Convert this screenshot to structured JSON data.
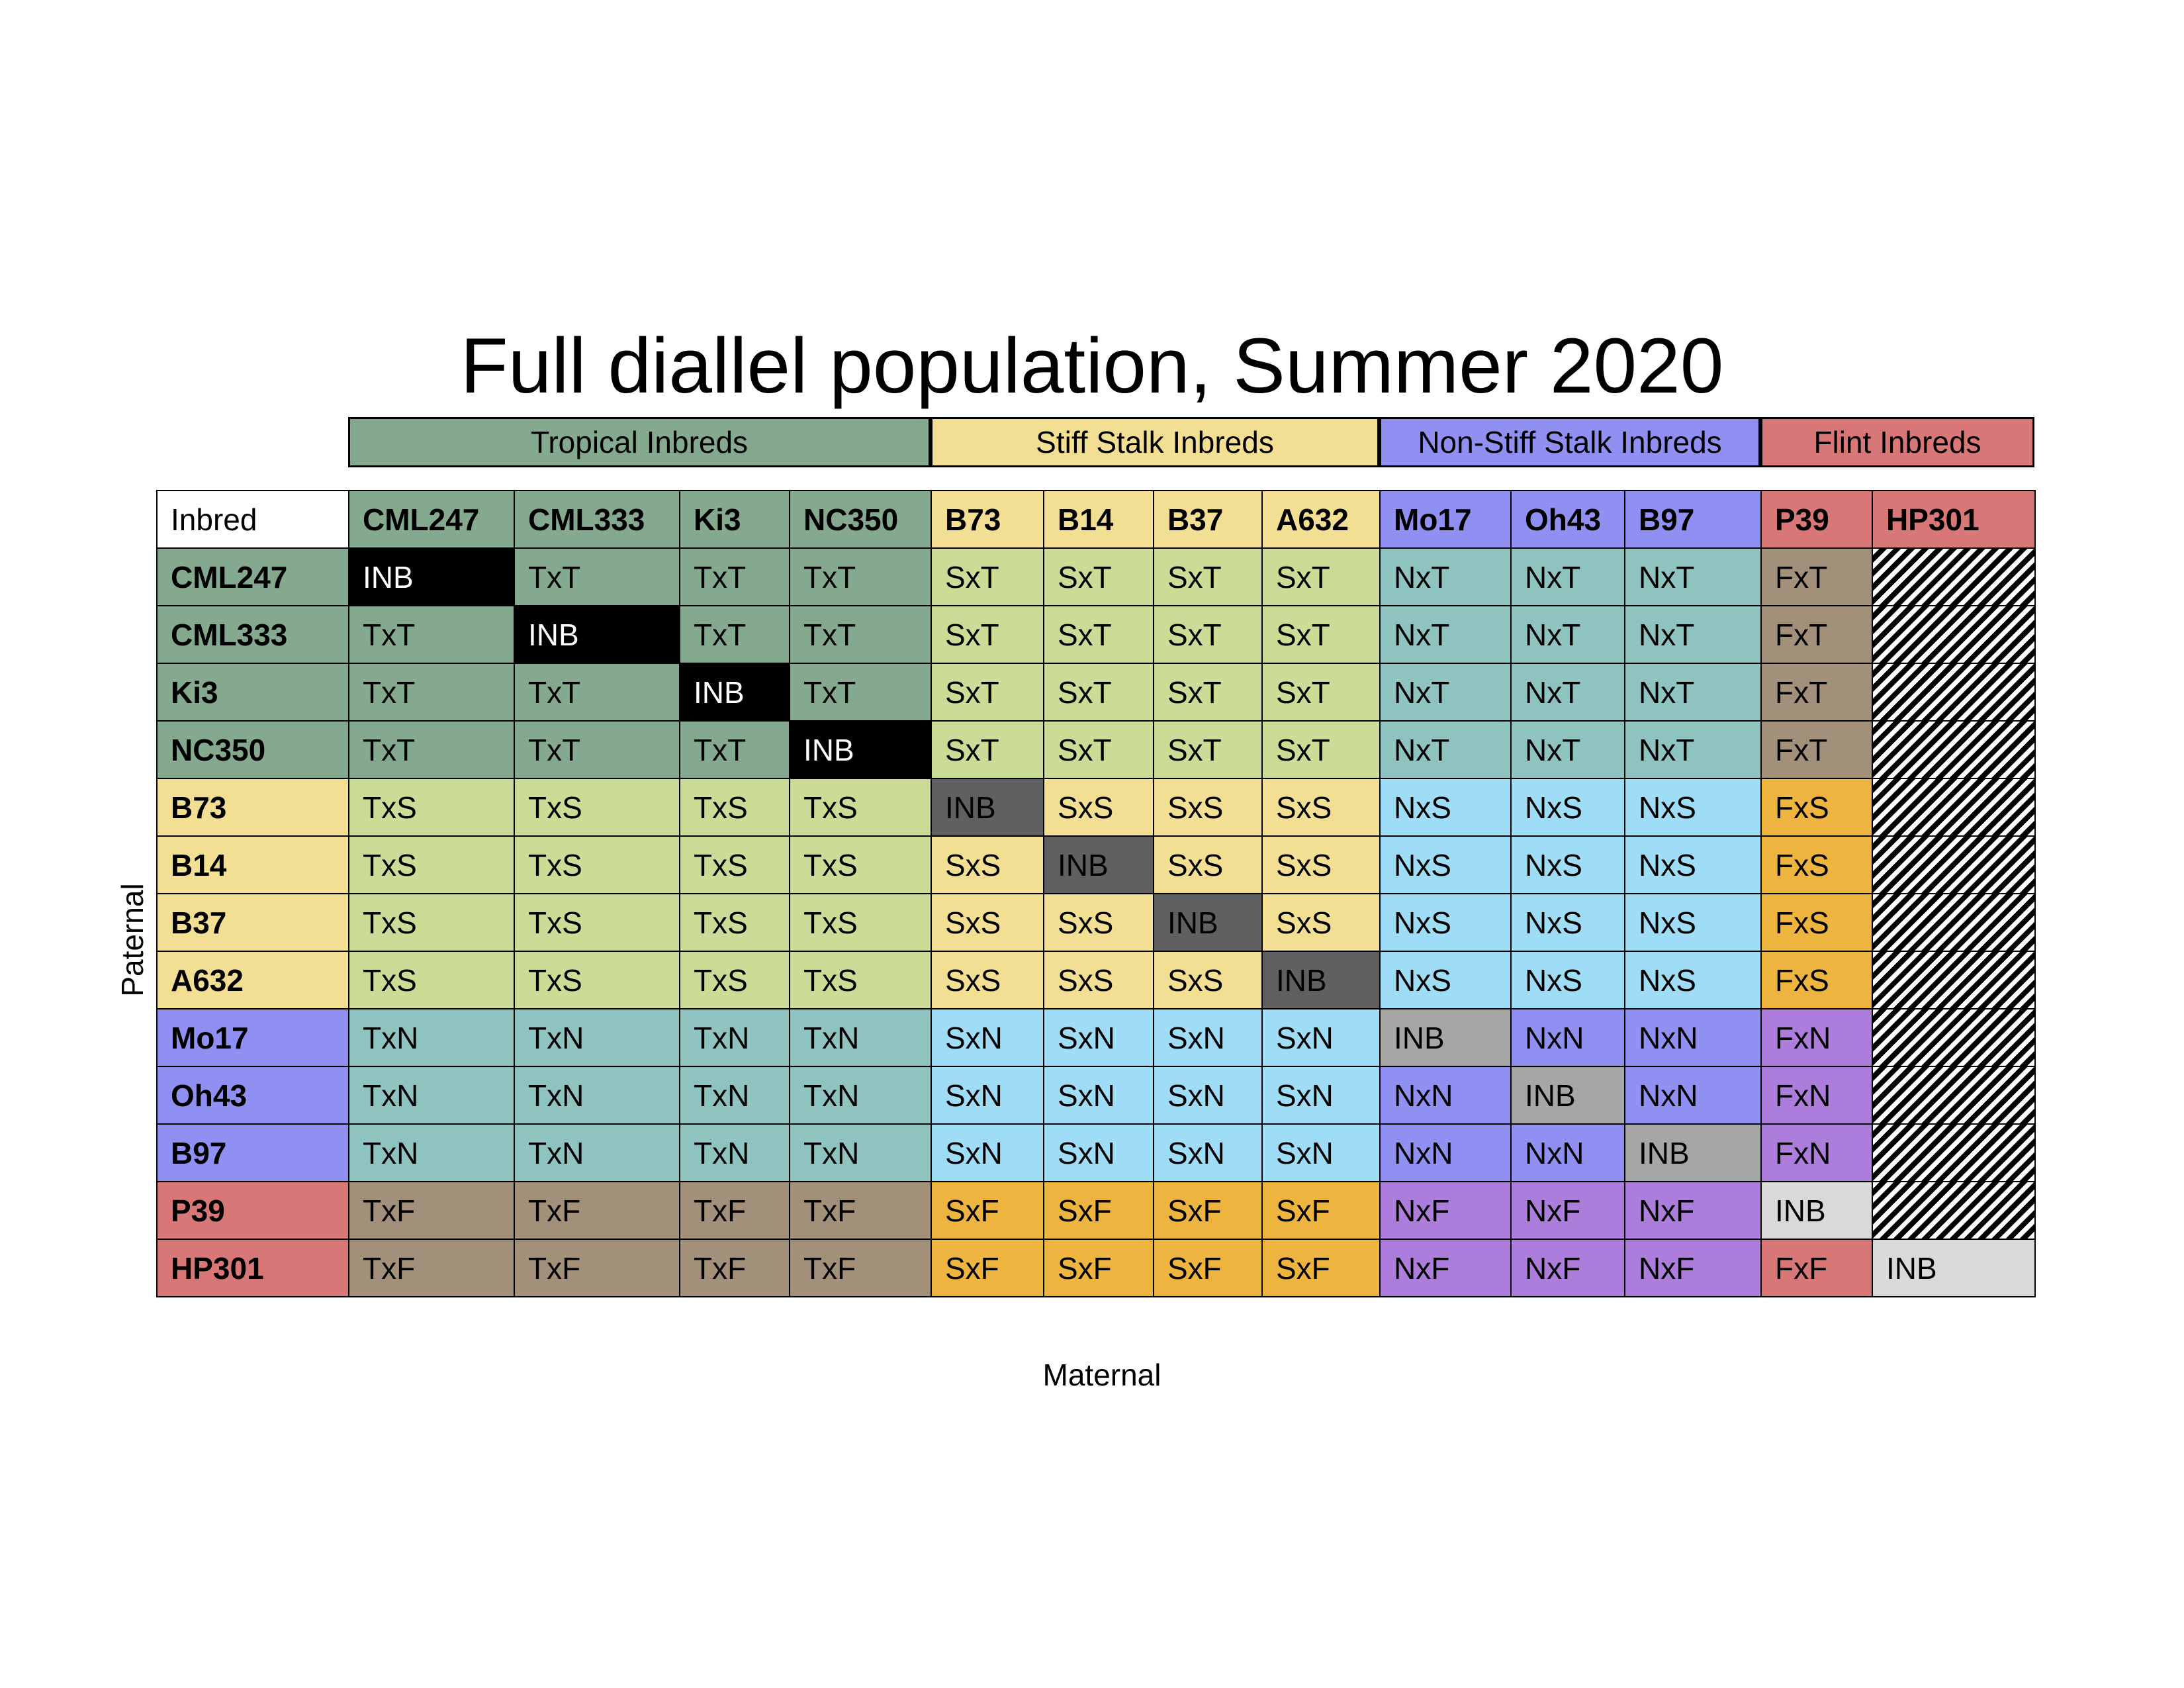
{
  "title": "Full diallel population, Summer 2020",
  "groups": [
    {
      "label": "Tropical Inbreds",
      "color": "#85a98f",
      "span": 4
    },
    {
      "label": "Stiff Stalk Inbreds",
      "color": "#f3df94",
      "span": 4
    },
    {
      "label": "Non-Stiff Stalk Inbreds",
      "color": "#9090f2",
      "span": 3
    },
    {
      "label": "Flint Inbreds",
      "color": "#d77777",
      "span": 2
    }
  ],
  "corner_label": "Inbred",
  "inbreds": [
    {
      "name": "CML247",
      "group": "T"
    },
    {
      "name": "CML333",
      "group": "T"
    },
    {
      "name": "Ki3",
      "group": "T"
    },
    {
      "name": "NC350",
      "group": "T"
    },
    {
      "name": "B73",
      "group": "S"
    },
    {
      "name": "B14",
      "group": "S"
    },
    {
      "name": "B37",
      "group": "S"
    },
    {
      "name": "A632",
      "group": "S"
    },
    {
      "name": "Mo17",
      "group": "N"
    },
    {
      "name": "Oh43",
      "group": "N"
    },
    {
      "name": "B97",
      "group": "N"
    },
    {
      "name": "P39",
      "group": "F"
    },
    {
      "name": "HP301",
      "group": "F"
    }
  ],
  "group_colors": {
    "T": "#85a98f",
    "S": "#f3df94",
    "N": "#9090f2",
    "F": "#d77777"
  },
  "pair_colors": {
    "TS": "#cbdc97",
    "ST": "#cbdc97",
    "TN": "#8fc3c0",
    "NT": "#8fc3c0",
    "TF": "#a3907a",
    "FT": "#a3907a",
    "SN": "#9fdcf5",
    "NS": "#9fdcf5",
    "SF": "#edb43f",
    "FS": "#edb43f",
    "NF": "#ad7ddc",
    "FN": "#ad7ddc"
  },
  "inbred_cell_label": "INB",
  "missing_cells": [
    [
      0,
      12
    ],
    [
      1,
      12
    ],
    [
      2,
      12
    ],
    [
      3,
      12
    ],
    [
      4,
      12
    ],
    [
      5,
      12
    ],
    [
      6,
      12
    ],
    [
      7,
      12
    ],
    [
      8,
      12
    ],
    [
      9,
      12
    ],
    [
      10,
      12
    ],
    [
      11,
      12
    ]
  ],
  "y_axis_label": "Paternal",
  "x_axis_label": "Maternal"
}
